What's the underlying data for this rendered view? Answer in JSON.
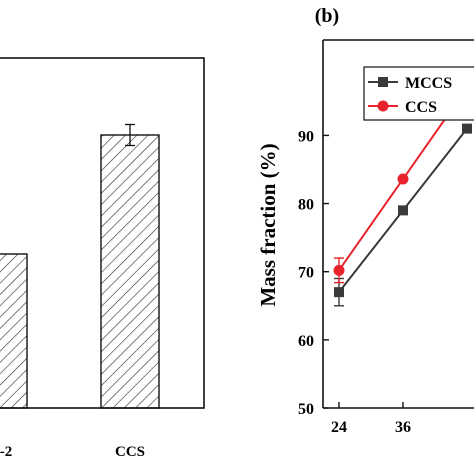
{
  "chart_data": [
    {
      "type": "bar",
      "categories": [
        "-2",
        "CCS"
      ],
      "values": [
        72,
        89
      ],
      "errors": [
        null,
        1.5
      ],
      "ylim": [
        50,
        100
      ],
      "hatch": "diagonal"
    },
    {
      "type": "line",
      "panel_label": "(b)",
      "ylabel": "Mass fraction (%)",
      "x": [
        24,
        36,
        48
      ],
      "xticks": [
        "24",
        "36"
      ],
      "yticks": [
        "50",
        "60",
        "70",
        "80",
        "90"
      ],
      "xlim": [
        21,
        51
      ],
      "ylim": [
        50,
        104
      ],
      "legend_position": "top-right",
      "series": [
        {
          "name": "MCCS",
          "color": "#3a3a3a",
          "marker": "square",
          "values": [
            67,
            79,
            91
          ],
          "errors": [
            2,
            null,
            null
          ]
        },
        {
          "name": "CCS",
          "color": "#e8232b",
          "marker": "circle",
          "values": [
            70.2,
            83.6,
            97
          ],
          "errors": [
            1.8,
            null,
            null
          ]
        }
      ]
    }
  ]
}
